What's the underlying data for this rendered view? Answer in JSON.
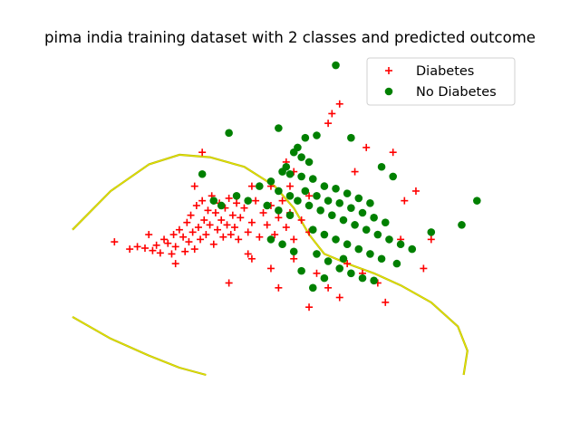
{
  "chart_data": {
    "type": "scatter",
    "title": "pima india training dataset with 2 classes and predicted outcome",
    "xlabel": "",
    "ylabel": "",
    "axes_visible": false,
    "grid": false,
    "xlim": [
      -4.2,
      7.2
    ],
    "ylim": [
      -2.6,
      4.1
    ],
    "legend": {
      "placement": "top-right"
    },
    "series": [
      {
        "name": "Diabetes",
        "marker": "plus",
        "color": "#ff0000",
        "points": [
          [
            -3.1,
            0.15
          ],
          [
            -2.7,
            0.0
          ],
          [
            -2.5,
            0.05
          ],
          [
            -2.3,
            0.02
          ],
          [
            -2.1,
            -0.03
          ],
          [
            -2.0,
            0.08
          ],
          [
            -1.9,
            -0.08
          ],
          [
            -1.8,
            0.2
          ],
          [
            -1.7,
            0.12
          ],
          [
            -1.6,
            -0.1
          ],
          [
            -1.55,
            0.3
          ],
          [
            -1.5,
            0.05
          ],
          [
            -1.4,
            0.4
          ],
          [
            -1.3,
            0.25
          ],
          [
            -1.25,
            -0.05
          ],
          [
            -1.2,
            0.55
          ],
          [
            -1.15,
            0.15
          ],
          [
            -1.1,
            0.7
          ],
          [
            -1.05,
            0.35
          ],
          [
            -1.0,
            0.0
          ],
          [
            -0.95,
            0.9
          ],
          [
            -0.9,
            0.45
          ],
          [
            -0.85,
            0.2
          ],
          [
            -0.8,
            1.0
          ],
          [
            -0.75,
            0.6
          ],
          [
            -0.7,
            0.3
          ],
          [
            -0.65,
            0.8
          ],
          [
            -0.6,
            0.5
          ],
          [
            -0.55,
            1.1
          ],
          [
            -0.5,
            0.1
          ],
          [
            -0.45,
            0.75
          ],
          [
            -0.4,
            0.4
          ],
          [
            -0.35,
            0.95
          ],
          [
            -0.3,
            0.6
          ],
          [
            -0.25,
            0.25
          ],
          [
            -0.2,
            0.85
          ],
          [
            -0.15,
            0.5
          ],
          [
            -0.1,
            1.05
          ],
          [
            -0.05,
            0.3
          ],
          [
            0.0,
            0.7
          ],
          [
            0.05,
            0.45
          ],
          [
            0.1,
            0.95
          ],
          [
            0.15,
            0.2
          ],
          [
            0.2,
            0.65
          ],
          [
            0.3,
            0.85
          ],
          [
            0.4,
            0.35
          ],
          [
            0.5,
            0.55
          ],
          [
            0.6,
            1.0
          ],
          [
            0.7,
            0.25
          ],
          [
            0.8,
            0.75
          ],
          [
            0.9,
            0.5
          ],
          [
            1.0,
            0.9
          ],
          [
            1.1,
            0.3
          ],
          [
            1.2,
            0.65
          ],
          [
            1.3,
            1.0
          ],
          [
            1.4,
            0.45
          ],
          [
            1.5,
            0.75
          ],
          [
            1.6,
            0.2
          ],
          [
            1.8,
            0.6
          ],
          [
            2.0,
            0.35
          ],
          [
            -0.8,
            2.0
          ],
          [
            0.5,
            1.3
          ],
          [
            1.0,
            1.3
          ],
          [
            1.5,
            1.3
          ],
          [
            2.0,
            1.1
          ],
          [
            1.4,
            1.8
          ],
          [
            1.6,
            1.6
          ],
          [
            2.6,
            2.8
          ],
          [
            2.8,
            3.0
          ],
          [
            2.5,
            2.6
          ],
          [
            3.5,
            2.1
          ],
          [
            4.2,
            2.0
          ],
          [
            4.5,
            1.0
          ],
          [
            4.4,
            0.2
          ],
          [
            5.2,
            0.2
          ],
          [
            5.0,
            -0.4
          ],
          [
            1.0,
            -0.4
          ],
          [
            0.5,
            -0.2
          ],
          [
            -0.1,
            -0.7
          ],
          [
            0.4,
            -0.1
          ],
          [
            1.2,
            -0.8
          ],
          [
            2.0,
            -1.2
          ],
          [
            2.5,
            -0.8
          ],
          [
            3.0,
            -0.3
          ],
          [
            3.4,
            -0.5
          ],
          [
            3.8,
            -0.7
          ],
          [
            4.0,
            -1.1
          ],
          [
            2.8,
            -1.0
          ],
          [
            1.6,
            -0.2
          ],
          [
            2.2,
            -0.5
          ],
          [
            -1.5,
            -0.3
          ],
          [
            -2.2,
            0.3
          ],
          [
            -1.0,
            1.3
          ],
          [
            3.2,
            1.6
          ],
          [
            4.8,
            1.2
          ]
        ]
      },
      {
        "name": "No Diabetes",
        "marker": "circle",
        "color": "#008000",
        "points": [
          [
            2.7,
            3.8
          ],
          [
            -0.1,
            2.4
          ],
          [
            1.2,
            2.5
          ],
          [
            1.9,
            2.3
          ],
          [
            2.2,
            2.35
          ],
          [
            3.1,
            2.3
          ],
          [
            1.7,
            2.1
          ],
          [
            1.6,
            2.0
          ],
          [
            1.8,
            1.9
          ],
          [
            2.0,
            1.8
          ],
          [
            1.4,
            1.7
          ],
          [
            1.3,
            1.6
          ],
          [
            1.5,
            1.55
          ],
          [
            1.8,
            1.5
          ],
          [
            2.1,
            1.45
          ],
          [
            -0.8,
            1.55
          ],
          [
            0.7,
            1.3
          ],
          [
            1.0,
            1.4
          ],
          [
            1.2,
            1.2
          ],
          [
            1.5,
            1.1
          ],
          [
            1.7,
            1.0
          ],
          [
            2.0,
            0.9
          ],
          [
            2.3,
            0.8
          ],
          [
            2.6,
            0.7
          ],
          [
            2.9,
            0.6
          ],
          [
            3.2,
            0.5
          ],
          [
            3.5,
            0.4
          ],
          [
            3.8,
            0.3
          ],
          [
            4.1,
            0.2
          ],
          [
            4.4,
            0.1
          ],
          [
            4.7,
            0.0
          ],
          [
            1.9,
            1.2
          ],
          [
            2.2,
            1.1
          ],
          [
            2.5,
            1.0
          ],
          [
            2.8,
            0.95
          ],
          [
            3.1,
            0.85
          ],
          [
            3.4,
            0.75
          ],
          [
            3.7,
            0.65
          ],
          [
            4.0,
            0.55
          ],
          [
            2.4,
            1.3
          ],
          [
            2.7,
            1.25
          ],
          [
            3.0,
            1.15
          ],
          [
            3.3,
            1.05
          ],
          [
            3.6,
            0.95
          ],
          [
            2.1,
            0.4
          ],
          [
            2.4,
            0.3
          ],
          [
            2.7,
            0.2
          ],
          [
            3.0,
            0.1
          ],
          [
            3.3,
            0.0
          ],
          [
            3.6,
            -0.1
          ],
          [
            3.9,
            -0.2
          ],
          [
            2.2,
            -0.1
          ],
          [
            2.5,
            -0.25
          ],
          [
            2.8,
            -0.4
          ],
          [
            3.1,
            -0.5
          ],
          [
            3.4,
            -0.6
          ],
          [
            3.7,
            -0.65
          ],
          [
            0.9,
            0.9
          ],
          [
            1.2,
            0.8
          ],
          [
            1.5,
            0.7
          ],
          [
            -0.3,
            0.9
          ],
          [
            -0.5,
            1.0
          ],
          [
            0.1,
            1.1
          ],
          [
            0.4,
            1.0
          ],
          [
            1.0,
            0.2
          ],
          [
            1.3,
            0.1
          ],
          [
            1.6,
            -0.05
          ],
          [
            5.2,
            0.35
          ],
          [
            6.0,
            0.5
          ],
          [
            6.4,
            1.0
          ],
          [
            4.2,
            1.5
          ],
          [
            3.9,
            1.7
          ],
          [
            2.1,
            -0.8
          ],
          [
            2.4,
            -0.6
          ],
          [
            1.8,
            -0.45
          ],
          [
            2.9,
            -0.2
          ],
          [
            4.3,
            -0.3
          ]
        ]
      }
    ],
    "decision_boundary": {
      "color": "#e6e600",
      "segments": [
        [
          [
            -4.2,
            0.4
          ],
          [
            -3.2,
            1.2
          ],
          [
            -2.2,
            1.75
          ],
          [
            -1.4,
            1.95
          ],
          [
            -0.6,
            1.9
          ],
          [
            0.3,
            1.7
          ],
          [
            1.1,
            1.3
          ],
          [
            1.6,
            0.85
          ],
          [
            2.0,
            0.3
          ],
          [
            2.4,
            -0.1
          ],
          [
            3.0,
            -0.3
          ],
          [
            3.7,
            -0.5
          ],
          [
            4.4,
            -0.75
          ],
          [
            5.2,
            -1.1
          ],
          [
            5.9,
            -1.6
          ],
          [
            6.15,
            -2.1
          ],
          [
            6.05,
            -2.6
          ]
        ],
        [
          [
            -4.2,
            -1.4
          ],
          [
            -3.2,
            -1.85
          ],
          [
            -2.2,
            -2.2
          ],
          [
            -1.4,
            -2.45
          ],
          [
            -0.7,
            -2.6
          ]
        ]
      ]
    }
  }
}
